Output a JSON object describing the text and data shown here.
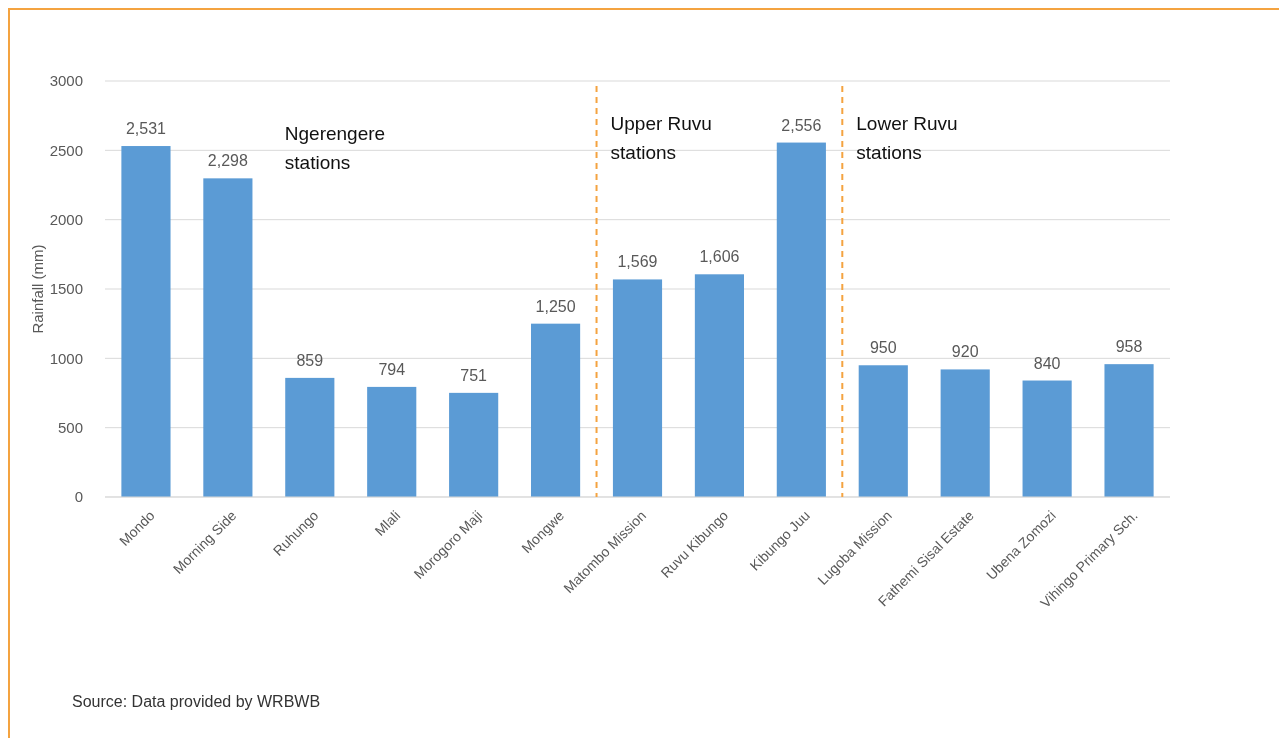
{
  "chart_data": {
    "type": "bar",
    "ylabel": "Rainfall (mm)",
    "categories": [
      "Mondo",
      "Morning Side",
      "Ruhungo",
      "Mlali",
      "Morogoro Maji",
      "Mongwe",
      "Matombo Mission",
      "Ruvu Kibungo",
      "Kibungo Juu",
      "Lugoba Mission",
      "Fathemi Sisal Estate",
      "Ubena Zomozi",
      "Vihingo Primary Sch."
    ],
    "values": [
      2531,
      2298,
      859,
      794,
      751,
      1250,
      1569,
      1606,
      2556,
      950,
      920,
      840,
      958
    ],
    "value_labels": [
      "2,531",
      "2,298",
      "859",
      "794",
      "751",
      "1,250",
      "1,569",
      "1,606",
      "2,556",
      "950",
      "920",
      "840",
      "958"
    ],
    "color": "#5b9bd5",
    "ylim": [
      0,
      3000
    ],
    "yticks": [
      0,
      500,
      1000,
      1500,
      2000,
      2500,
      3000
    ],
    "grid": "y",
    "annotations": [
      "Ngerengere stations",
      "Upper Ruvu stations",
      "Lower Ruvu stations",
      "Source: Data provided by WRBWB"
    ]
  }
}
